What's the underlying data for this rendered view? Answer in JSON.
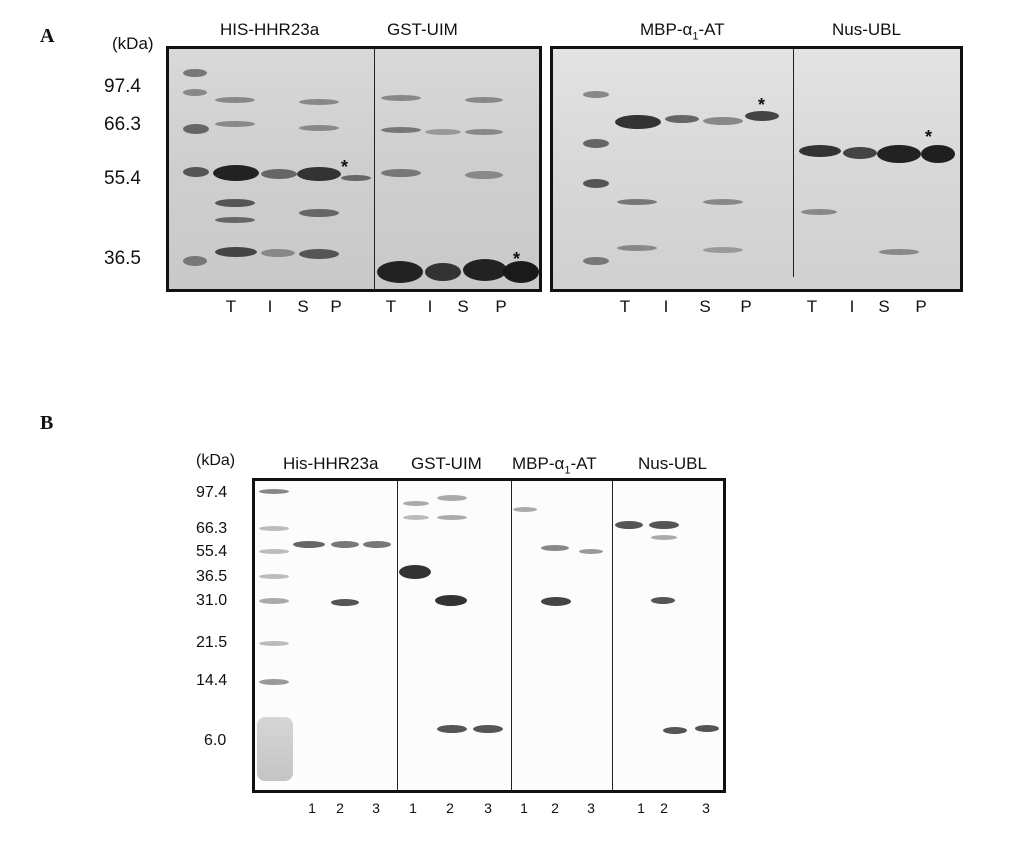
{
  "panel_a": {
    "letter": "A",
    "unit_label": "(kDa)",
    "markers": [
      "97.4",
      "66.3",
      "55.4",
      "36.5"
    ],
    "constructs": [
      "HIS-HHR23a",
      "GST-UIM",
      "MBP-α1-AT",
      "Nus-UBL"
    ],
    "lane_labels": [
      "T",
      "I",
      "S",
      "P"
    ],
    "star": "*"
  },
  "panel_b": {
    "letter": "B",
    "unit_label": "(kDa)",
    "markers": [
      "97.4",
      "66.3",
      "55.4",
      "36.5",
      "31.0",
      "21.5",
      "14.4",
      "6.0"
    ],
    "constructs": [
      "His-HHR23a",
      "GST-UIM",
      "MBP-α1-AT",
      "Nus-UBL"
    ],
    "lane_labels": [
      "1",
      "2",
      "3"
    ]
  }
}
